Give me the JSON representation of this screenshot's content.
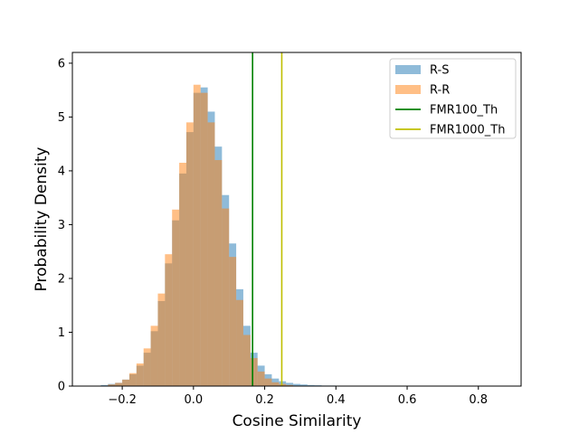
{
  "chart_data": {
    "type": "histogram",
    "xlabel": "Cosine Similarity",
    "ylabel": "Probability Density",
    "xlim": [
      -0.34,
      0.92
    ],
    "ylim": [
      0,
      6.2
    ],
    "x_ticks": [
      {
        "value": -0.2,
        "label": "−0.2"
      },
      {
        "value": 0.0,
        "label": "0.0"
      },
      {
        "value": 0.2,
        "label": "0.2"
      },
      {
        "value": 0.4,
        "label": "0.4"
      },
      {
        "value": 0.6,
        "label": "0.6"
      },
      {
        "value": 0.8,
        "label": "0.8"
      }
    ],
    "y_ticks": [
      {
        "value": 0,
        "label": "0"
      },
      {
        "value": 1,
        "label": "1"
      },
      {
        "value": 2,
        "label": "2"
      },
      {
        "value": 3,
        "label": "3"
      },
      {
        "value": 4,
        "label": "4"
      },
      {
        "value": 5,
        "label": "5"
      },
      {
        "value": 6,
        "label": "6"
      }
    ],
    "grid": false,
    "legend_position": "top-right",
    "series": [
      {
        "name": "R-S",
        "kind": "histogram",
        "color": "#1f77b4",
        "alpha": 0.5,
        "bins": [
          {
            "x0": -0.26,
            "x1": -0.24,
            "y": 0.02
          },
          {
            "x0": -0.24,
            "x1": -0.22,
            "y": 0.04
          },
          {
            "x0": -0.22,
            "x1": -0.2,
            "y": 0.06
          },
          {
            "x0": -0.2,
            "x1": -0.18,
            "y": 0.12
          },
          {
            "x0": -0.18,
            "x1": -0.16,
            "y": 0.22
          },
          {
            "x0": -0.16,
            "x1": -0.14,
            "y": 0.38
          },
          {
            "x0": -0.14,
            "x1": -0.12,
            "y": 0.62
          },
          {
            "x0": -0.12,
            "x1": -0.1,
            "y": 1.02
          },
          {
            "x0": -0.1,
            "x1": -0.08,
            "y": 1.58
          },
          {
            "x0": -0.08,
            "x1": -0.06,
            "y": 2.28
          },
          {
            "x0": -0.06,
            "x1": -0.04,
            "y": 3.08
          },
          {
            "x0": -0.04,
            "x1": -0.02,
            "y": 3.95
          },
          {
            "x0": -0.02,
            "x1": 0.0,
            "y": 4.72
          },
          {
            "x0": 0.0,
            "x1": 0.02,
            "y": 5.45
          },
          {
            "x0": 0.02,
            "x1": 0.04,
            "y": 5.55
          },
          {
            "x0": 0.04,
            "x1": 0.06,
            "y": 5.1
          },
          {
            "x0": 0.06,
            "x1": 0.08,
            "y": 4.45
          },
          {
            "x0": 0.08,
            "x1": 0.1,
            "y": 3.55
          },
          {
            "x0": 0.1,
            "x1": 0.12,
            "y": 2.65
          },
          {
            "x0": 0.12,
            "x1": 0.14,
            "y": 1.8
          },
          {
            "x0": 0.14,
            "x1": 0.16,
            "y": 1.12
          },
          {
            "x0": 0.16,
            "x1": 0.18,
            "y": 0.62
          },
          {
            "x0": 0.18,
            "x1": 0.2,
            "y": 0.38
          },
          {
            "x0": 0.2,
            "x1": 0.22,
            "y": 0.22
          },
          {
            "x0": 0.22,
            "x1": 0.24,
            "y": 0.14
          },
          {
            "x0": 0.24,
            "x1": 0.26,
            "y": 0.09
          },
          {
            "x0": 0.26,
            "x1": 0.28,
            "y": 0.06
          },
          {
            "x0": 0.28,
            "x1": 0.3,
            "y": 0.04
          },
          {
            "x0": 0.3,
            "x1": 0.32,
            "y": 0.03
          },
          {
            "x0": 0.32,
            "x1": 0.34,
            "y": 0.02
          },
          {
            "x0": 0.34,
            "x1": 0.36,
            "y": 0.015
          },
          {
            "x0": 0.36,
            "x1": 0.38,
            "y": 0.01
          },
          {
            "x0": 0.38,
            "x1": 0.4,
            "y": 0.01
          }
        ]
      },
      {
        "name": "R-R",
        "kind": "histogram",
        "color": "#ff7f0e",
        "alpha": 0.5,
        "bins": [
          {
            "x0": -0.24,
            "x1": -0.22,
            "y": 0.03
          },
          {
            "x0": -0.22,
            "x1": -0.2,
            "y": 0.06
          },
          {
            "x0": -0.2,
            "x1": -0.18,
            "y": 0.12
          },
          {
            "x0": -0.18,
            "x1": -0.16,
            "y": 0.24
          },
          {
            "x0": -0.16,
            "x1": -0.14,
            "y": 0.42
          },
          {
            "x0": -0.14,
            "x1": -0.12,
            "y": 0.7
          },
          {
            "x0": -0.12,
            "x1": -0.1,
            "y": 1.12
          },
          {
            "x0": -0.1,
            "x1": -0.08,
            "y": 1.72
          },
          {
            "x0": -0.08,
            "x1": -0.06,
            "y": 2.45
          },
          {
            "x0": -0.06,
            "x1": -0.04,
            "y": 3.28
          },
          {
            "x0": -0.04,
            "x1": -0.02,
            "y": 4.15
          },
          {
            "x0": -0.02,
            "x1": 0.0,
            "y": 4.9
          },
          {
            "x0": 0.0,
            "x1": 0.02,
            "y": 5.6
          },
          {
            "x0": 0.02,
            "x1": 0.04,
            "y": 5.45
          },
          {
            "x0": 0.04,
            "x1": 0.06,
            "y": 4.9
          },
          {
            "x0": 0.06,
            "x1": 0.08,
            "y": 4.2
          },
          {
            "x0": 0.08,
            "x1": 0.1,
            "y": 3.3
          },
          {
            "x0": 0.1,
            "x1": 0.12,
            "y": 2.4
          },
          {
            "x0": 0.12,
            "x1": 0.14,
            "y": 1.6
          },
          {
            "x0": 0.14,
            "x1": 0.16,
            "y": 0.95
          },
          {
            "x0": 0.16,
            "x1": 0.18,
            "y": 0.52
          },
          {
            "x0": 0.18,
            "x1": 0.2,
            "y": 0.27
          },
          {
            "x0": 0.2,
            "x1": 0.22,
            "y": 0.14
          },
          {
            "x0": 0.22,
            "x1": 0.24,
            "y": 0.07
          },
          {
            "x0": 0.24,
            "x1": 0.26,
            "y": 0.04
          },
          {
            "x0": 0.26,
            "x1": 0.28,
            "y": 0.02
          }
        ]
      },
      {
        "name": "FMR100_Th",
        "kind": "vline",
        "color": "#008000",
        "x": 0.166
      },
      {
        "name": "FMR1000_Th",
        "kind": "vline",
        "color": "#bfbf00",
        "x": 0.248
      }
    ]
  }
}
